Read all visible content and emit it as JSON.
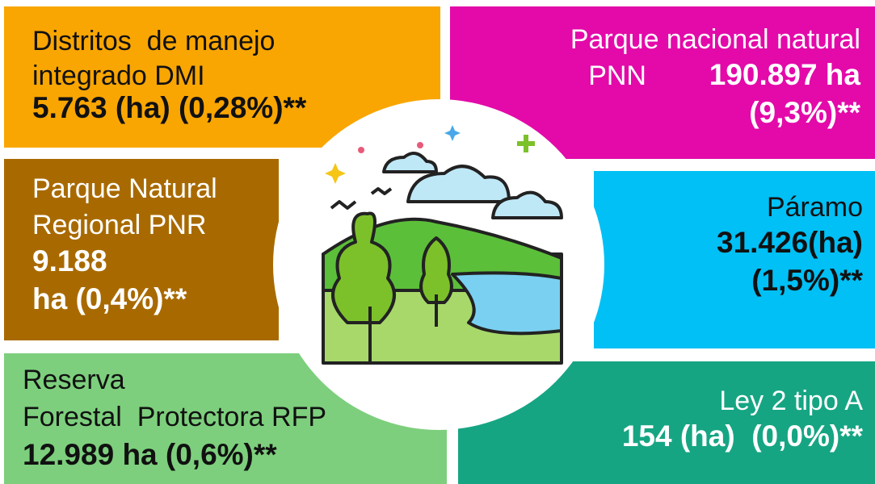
{
  "panels": [
    {
      "label_lines": [
        "Distritos  de manejo",
        "integrado DMI"
      ],
      "value_lines": [
        "5.763 (ha) (0,28%)**"
      ]
    },
    {
      "label_lines": [
        "Parque nacional natural",
        "PNN"
      ],
      "value_lines": [
        "190.897 ha",
        "(9,3%)**"
      ]
    },
    {
      "label_lines": [
        "Parque Natural",
        "Regional PNR"
      ],
      "value_lines": [
        "9.188",
        "ha (0,4%)**"
      ]
    },
    {
      "label_lines": [
        "Páramo"
      ],
      "value_lines": [
        "31.426(ha)",
        "(1,5%)**"
      ]
    },
    {
      "label_lines": [
        "Reserva",
        "Forestal  Protectora RFP"
      ],
      "value_lines": [
        "12.989 ha (0,6%)**"
      ]
    },
    {
      "label_lines": [
        "Ley 2 tipo A"
      ],
      "value_lines": [
        "154 (ha)  (0,0%)**"
      ]
    }
  ]
}
